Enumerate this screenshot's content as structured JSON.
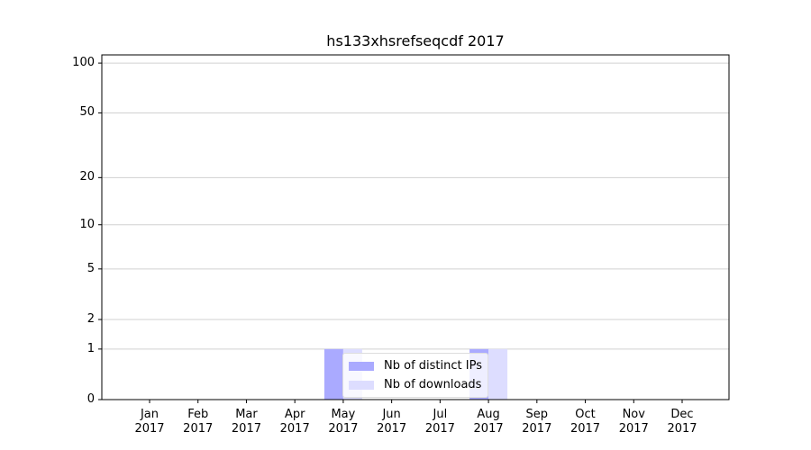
{
  "chart_data": {
    "type": "bar",
    "title": "hs133xhsrefseqcdf 2017",
    "categories": [
      "Jan\n2017",
      "Feb\n2017",
      "Mar\n2017",
      "Apr\n2017",
      "May\n2017",
      "Jun\n2017",
      "Jul\n2017",
      "Aug\n2017",
      "Sep\n2017",
      "Oct\n2017",
      "Nov\n2017",
      "Dec\n2017"
    ],
    "series": [
      {
        "name": "Nb of distinct IPs",
        "color": "#aaaaff",
        "values": [
          0,
          0,
          0,
          0,
          1,
          0,
          0,
          1,
          0,
          0,
          0,
          0
        ]
      },
      {
        "name": "Nb of downloads",
        "color": "#ddddff",
        "values": [
          0,
          0,
          0,
          0,
          1,
          0,
          0,
          1,
          0,
          0,
          0,
          0
        ]
      }
    ],
    "yscale": "log1p",
    "ylim": [
      0,
      112
    ],
    "yticks": [
      0,
      1,
      2,
      5,
      10,
      20,
      50,
      100
    ],
    "grid": true,
    "legend": "lower center"
  }
}
